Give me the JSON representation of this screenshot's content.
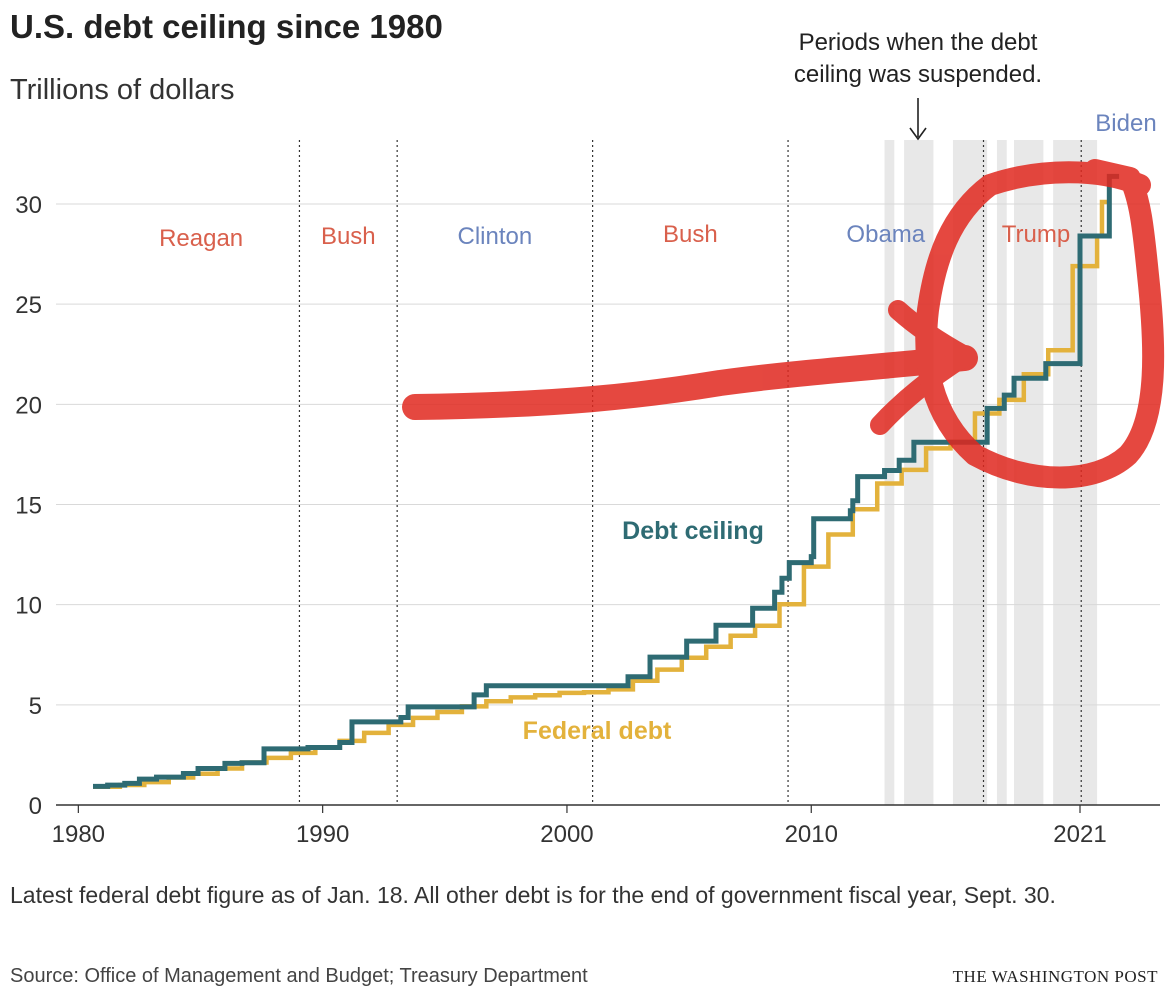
{
  "header": {
    "title": "U.S. debt ceiling since 1980",
    "subtitle": "Trillions of dollars"
  },
  "footer": {
    "note": "Latest federal debt figure as of Jan. 18. All other debt is for the end of government fiscal year, Sept. 30.",
    "source": "Source: Office of Management and Budget; Treasury Department",
    "brand": "THE WASHINGTON POST"
  },
  "colors": {
    "debt_ceiling": "#2e6b73",
    "federal_debt": "#e3b23c",
    "republican": "#d9604c",
    "democrat": "#6b84bd",
    "suspension_band": "#e8e8e8",
    "gridline": "#d9d9d9",
    "annotation_marker": "#e0281f"
  },
  "chart_data": {
    "type": "line",
    "y_ticks": [
      "0",
      "5",
      "10",
      "15",
      "20",
      "25",
      "30"
    ],
    "x_ticks": [
      "1980",
      "1990",
      "2000",
      "2010",
      "2021"
    ],
    "ylim": [
      0,
      33
    ],
    "xlim": [
      1979.7,
      2022.6
    ],
    "grid": true,
    "series": [
      {
        "name": "Debt ceiling",
        "step": true,
        "points": [
          [
            1980.6,
            0.93
          ],
          [
            1981.2,
            0.99
          ],
          [
            1981.9,
            1.08
          ],
          [
            1982.5,
            1.29
          ],
          [
            1983.2,
            1.39
          ],
          [
            1984.3,
            1.57
          ],
          [
            1984.9,
            1.82
          ],
          [
            1986.0,
            2.08
          ],
          [
            1986.7,
            2.11
          ],
          [
            1987.6,
            2.8
          ],
          [
            1989.4,
            2.87
          ],
          [
            1990.7,
            3.12
          ],
          [
            1991.2,
            4.15
          ],
          [
            1993.2,
            4.37
          ],
          [
            1993.5,
            4.9
          ],
          [
            1996.2,
            5.5
          ],
          [
            1996.7,
            5.95
          ],
          [
            2002.5,
            6.4
          ],
          [
            2003.4,
            7.38
          ],
          [
            2004.9,
            8.18
          ],
          [
            2006.1,
            8.97
          ],
          [
            2007.6,
            9.82
          ],
          [
            2008.5,
            10.62
          ],
          [
            2008.8,
            11.32
          ],
          [
            2009.1,
            12.1
          ],
          [
            2010.0,
            12.4
          ],
          [
            2010.1,
            14.29
          ],
          [
            2011.6,
            14.69
          ],
          [
            2011.7,
            15.19
          ],
          [
            2011.9,
            16.39
          ],
          [
            2013.0,
            16.7
          ],
          [
            2013.6,
            17.21
          ],
          [
            2014.1,
            17.21
          ],
          [
            2014.2,
            18.11
          ],
          [
            2015.8,
            18.11
          ],
          [
            2017.2,
            19.8
          ],
          [
            2017.9,
            20.46
          ],
          [
            2018.3,
            21.3
          ],
          [
            2019.6,
            22.03
          ],
          [
            2019.9,
            22.03
          ],
          [
            2021.0,
            28.4
          ],
          [
            2022.1,
            28.4
          ],
          [
            2022.2,
            31.38
          ],
          [
            2022.6,
            31.38
          ]
        ]
      },
      {
        "name": "Federal debt",
        "step": true,
        "points": [
          [
            1980.6,
            0.91
          ],
          [
            1981.7,
            1.0
          ],
          [
            1982.7,
            1.14
          ],
          [
            1983.7,
            1.37
          ],
          [
            1984.7,
            1.56
          ],
          [
            1985.7,
            1.82
          ],
          [
            1986.7,
            2.12
          ],
          [
            1987.7,
            2.35
          ],
          [
            1988.7,
            2.6
          ],
          [
            1989.7,
            2.87
          ],
          [
            1990.7,
            3.2
          ],
          [
            1991.7,
            3.6
          ],
          [
            1992.7,
            4.0
          ],
          [
            1993.7,
            4.35
          ],
          [
            1994.7,
            4.64
          ],
          [
            1995.7,
            4.92
          ],
          [
            1996.7,
            5.18
          ],
          [
            1997.7,
            5.37
          ],
          [
            1998.7,
            5.48
          ],
          [
            1999.7,
            5.6
          ],
          [
            2000.7,
            5.63
          ],
          [
            2001.7,
            5.77
          ],
          [
            2002.7,
            6.2
          ],
          [
            2003.7,
            6.76
          ],
          [
            2004.7,
            7.35
          ],
          [
            2005.7,
            7.9
          ],
          [
            2006.7,
            8.45
          ],
          [
            2007.7,
            8.95
          ],
          [
            2008.7,
            10.02
          ],
          [
            2009.7,
            11.9
          ],
          [
            2010.7,
            13.5
          ],
          [
            2011.7,
            14.76
          ],
          [
            2012.7,
            16.05
          ],
          [
            2013.7,
            16.73
          ],
          [
            2014.7,
            17.8
          ],
          [
            2015.7,
            18.12
          ],
          [
            2016.7,
            19.54
          ],
          [
            2017.7,
            20.22
          ],
          [
            2018.7,
            21.5
          ],
          [
            2019.7,
            22.7
          ],
          [
            2020.7,
            26.9
          ],
          [
            2021.7,
            28.4
          ],
          [
            2021.9,
            30.1
          ],
          [
            2022.2,
            30.9
          ]
        ]
      }
    ],
    "series_labels": [
      "Debt ceiling",
      "Federal debt"
    ],
    "suspension_periods": [
      [
        2013.0,
        2013.4
      ],
      [
        2013.8,
        2015.0
      ],
      [
        2015.8,
        2017.2
      ],
      [
        2017.6,
        2018.0
      ],
      [
        2018.3,
        2019.5
      ],
      [
        2019.9,
        2021.7
      ]
    ],
    "presidential_terms": [
      {
        "name": "Reagan",
        "start": 1981.0,
        "end": 1989.05,
        "party": "republican"
      },
      {
        "name": "Bush",
        "start": 1989.05,
        "end": 1993.05,
        "party": "republican"
      },
      {
        "name": "Clinton",
        "start": 1993.05,
        "end": 2001.05,
        "party": "democrat"
      },
      {
        "name": "Bush",
        "start": 2001.05,
        "end": 2009.05,
        "party": "republican"
      },
      {
        "name": "Obama",
        "start": 2009.05,
        "end": 2017.05,
        "party": "democrat"
      },
      {
        "name": "Trump",
        "start": 2017.05,
        "end": 2021.05,
        "party": "republican"
      },
      {
        "name": "Biden",
        "start": 2021.05,
        "end": 2022.6,
        "party": "democrat"
      }
    ],
    "annotation": "Periods when the debt ceiling was suspended."
  }
}
